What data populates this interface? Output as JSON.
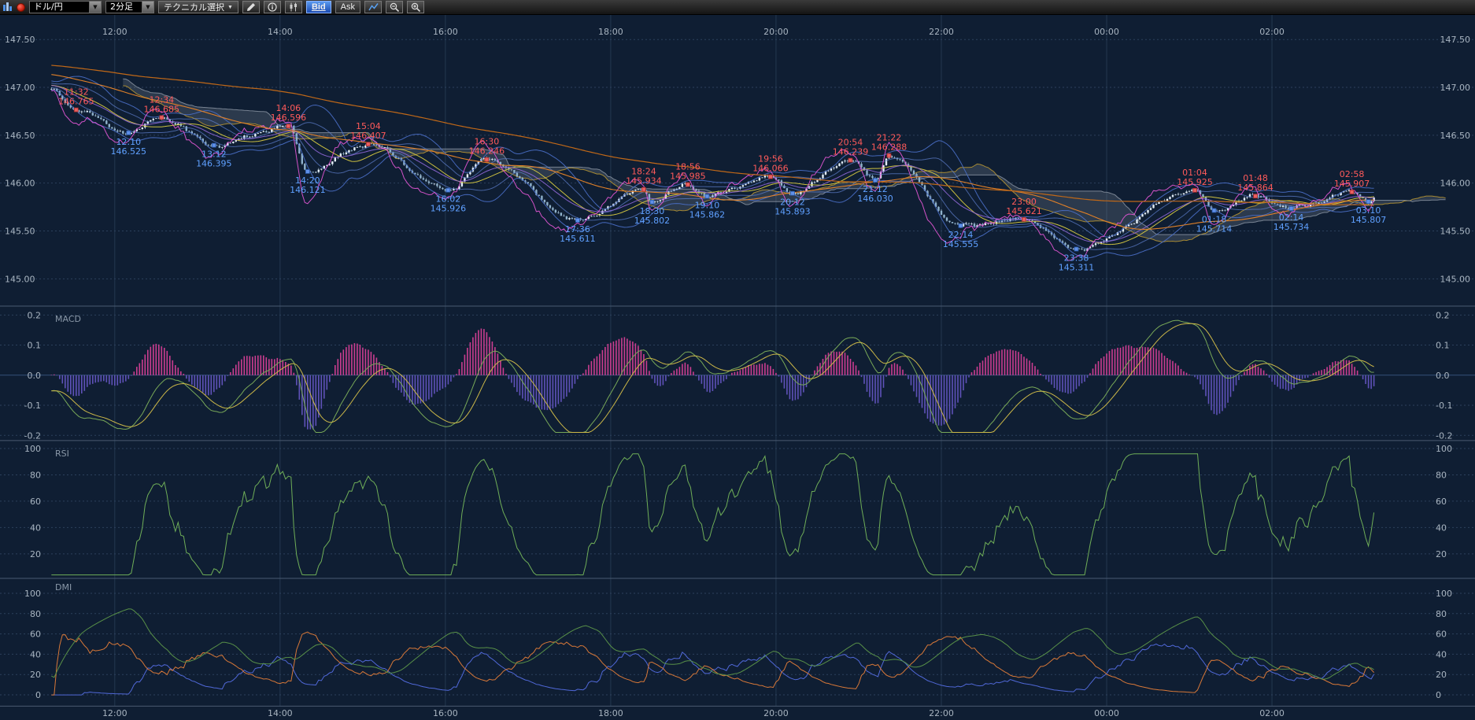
{
  "toolbar": {
    "pair_value": "ドル/円",
    "timeframe_value": "2分足",
    "technical_label": "テクニカル選択",
    "bid_label": "Bid",
    "ask_label": "Ask",
    "active_side": "Bid",
    "icons": [
      "app-icon",
      "record-icon",
      "chevron-down-icon",
      "pencil-icon",
      "info-icon",
      "candle-chart-icon",
      "line-chart-icon",
      "zoom-out-icon",
      "zoom-in-icon"
    ]
  },
  "chart_data": {
    "type": "candlestick",
    "title": "ドル/円 2分足",
    "x_axis_labels": [
      "12:00",
      "14:00",
      "16:00",
      "18:00",
      "20:00",
      "22:00",
      "00:00",
      "02:00"
    ],
    "price_axis_labels": [
      "147.50",
      "147.00",
      "146.50",
      "146.00",
      "145.50",
      "145.00"
    ],
    "price_range": [
      144.85,
      147.55
    ],
    "candle_start": {
      "time": "11:14",
      "price": 146.98
    },
    "candle_end": {
      "time": "03:14",
      "price": 145.85
    },
    "swing_highs": [
      {
        "time": "11:32",
        "price": 146.765
      },
      {
        "time": "12:34",
        "price": 146.685
      },
      {
        "time": "14:06",
        "price": 146.596
      },
      {
        "time": "15:04",
        "price": 146.407
      },
      {
        "time": "16:30",
        "price": 146.246
      },
      {
        "time": "18:24",
        "price": 145.934
      },
      {
        "time": "18:56",
        "price": 145.985
      },
      {
        "time": "19:56",
        "price": 146.066
      },
      {
        "time": "20:54",
        "price": 146.239
      },
      {
        "time": "21:22",
        "price": 146.288
      },
      {
        "time": "23:00",
        "price": 145.621
      },
      {
        "time": "01:04",
        "price": 145.925
      },
      {
        "time": "01:48",
        "price": 145.864
      },
      {
        "time": "02:58",
        "price": 145.907
      }
    ],
    "swing_lows": [
      {
        "time": "12:10",
        "price": 146.525
      },
      {
        "time": "13:12",
        "price": 146.395
      },
      {
        "time": "14:20",
        "price": 146.121
      },
      {
        "time": "16:02",
        "price": 145.926
      },
      {
        "time": "17:36",
        "price": 145.611
      },
      {
        "time": "18:30",
        "price": 145.802
      },
      {
        "time": "19:10",
        "price": 145.862
      },
      {
        "time": "20:12",
        "price": 145.893
      },
      {
        "time": "21:12",
        "price": 146.03
      },
      {
        "time": "22:14",
        "price": 145.555
      },
      {
        "time": "23:38",
        "price": 145.311
      },
      {
        "time": "01:18",
        "price": 145.714
      },
      {
        "time": "02:14",
        "price": 145.734
      },
      {
        "time": "03:10",
        "price": 145.807
      }
    ],
    "sub_charts": [
      {
        "name": "MACD",
        "axis_labels": [
          "0.2",
          "0.1",
          "0.0",
          "-0.1",
          "-0.2"
        ],
        "range": [
          -0.2,
          0.2
        ],
        "series": [
          "macd-histogram",
          "macd-line",
          "signal-line"
        ]
      },
      {
        "name": "RSI",
        "axis_labels": [
          "100",
          "80",
          "60",
          "40",
          "20"
        ],
        "range": [
          0,
          100
        ],
        "series": [
          "rsi"
        ]
      },
      {
        "name": "DMI",
        "axis_labels": [
          "100",
          "80",
          "60",
          "40",
          "20",
          "0"
        ],
        "range": [
          0,
          100
        ],
        "series": [
          "plus-di",
          "minus-di",
          "adx"
        ]
      }
    ]
  },
  "colors": {
    "background": "#0f1e33",
    "grid_vertical": "#243850",
    "grid_dotted": "#2c405c",
    "separator": "#4a5a70",
    "axis_text": "#a8b4c0",
    "panel_title_text": "#8a98a8",
    "swing_high_text": "#ff5a5a",
    "swing_low_text": "#5fa0ff",
    "candle_up": "#e4eef8",
    "candle_down": "#8fb2cc",
    "candle_wick": "#b8cede",
    "ma_yellow": "#ccc040",
    "ma_orange": "#e08028",
    "ma_long_orange": "#c06818",
    "ma_magenta": "#e858d8",
    "ma_purple": "#9068d8",
    "band_blue": "#4a6fc8",
    "band_blue_light": "#6080d0",
    "cloud_gray": "rgba(150,160,175,0.22)",
    "cloud_edge_a": "#c8a030",
    "cloud_edge_b": "#909aa8",
    "macd_hist_pos": "#e0409a",
    "macd_hist_neg": "#6858c8",
    "macd_line": "#78a858",
    "macd_signal": "#ccb848",
    "rsi_line": "#6fae58",
    "dmi_plus": "#5068d8",
    "dmi_minus": "#d87838",
    "dmi_adx": "#589048"
  }
}
